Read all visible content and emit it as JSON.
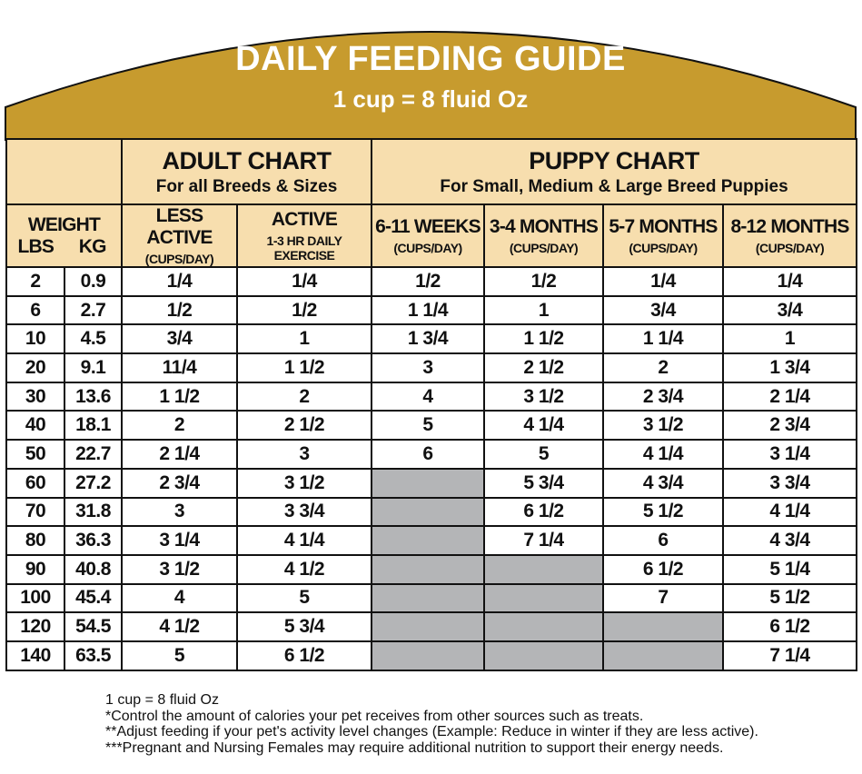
{
  "header": {
    "title": "DAILY FEEDING GUIDE",
    "subtitle": "1 cup = 8 fluid Oz"
  },
  "table": {
    "groups": [
      {
        "title": "ADULT CHART",
        "subtitle": "For all Breeds & Sizes"
      },
      {
        "title": "PUPPY CHART",
        "subtitle": "For Small, Medium & Large Breed Puppies"
      }
    ],
    "weight_label": "WEIGHT",
    "columns": [
      {
        "label": "LBS"
      },
      {
        "label": "KG"
      },
      {
        "label": "LESS ACTIVE",
        "sub": "(CUPS/DAY)"
      },
      {
        "label": "ACTIVE",
        "sub": "1-3 HR DAILY EXERCISE"
      },
      {
        "label": "6-11 WEEKS",
        "sub": "(CUPS/DAY)"
      },
      {
        "label": "3-4 MONTHS",
        "sub": "(CUPS/DAY)"
      },
      {
        "label": "5-7 MONTHS",
        "sub": "(CUPS/DAY)"
      },
      {
        "label": "8-12 MONTHS",
        "sub": "(CUPS/DAY)"
      }
    ],
    "rows": [
      [
        2,
        0.9,
        "1/4",
        "1/4",
        "1/2",
        "1/2",
        "1/4",
        "1/4"
      ],
      [
        6,
        2.7,
        "1/2",
        "1/2",
        "1 1/4",
        "1",
        "3/4",
        "3/4"
      ],
      [
        10,
        4.5,
        "3/4",
        "1",
        "1 3/4",
        "1 1/2",
        "1 1/4",
        "1"
      ],
      [
        20,
        9.1,
        "11/4",
        "1 1/2",
        "3",
        "2 1/2",
        "2",
        "1 3/4"
      ],
      [
        30,
        13.6,
        "1 1/2",
        "2",
        "4",
        "3 1/2",
        "2 3/4",
        "2 1/4"
      ],
      [
        40,
        18.1,
        "2",
        "2 1/2",
        "5",
        "4 1/4",
        "3 1/2",
        "2 3/4"
      ],
      [
        50,
        22.7,
        "2 1/4",
        "3",
        "6",
        "5",
        "4 1/4",
        "3 1/4"
      ],
      [
        60,
        27.2,
        "2 3/4",
        "3 1/2",
        null,
        "5 3/4",
        "4 3/4",
        "3 3/4"
      ],
      [
        70,
        31.8,
        "3",
        "3 3/4",
        null,
        "6 1/2",
        "5 1/2",
        "4 1/4"
      ],
      [
        80,
        36.3,
        "3 1/4",
        "4 1/4",
        null,
        "7 1/4",
        "6",
        "4 3/4"
      ],
      [
        90,
        40.8,
        "3 1/2",
        "4 1/2",
        null,
        null,
        "6 1/2",
        "5 1/4"
      ],
      [
        100,
        45.4,
        "4",
        "5",
        null,
        null,
        "7",
        "5 1/2"
      ],
      [
        120,
        54.5,
        "4 1/2",
        "5 3/4",
        null,
        null,
        null,
        "6 1/2"
      ],
      [
        140,
        63.5,
        "5",
        "6 1/2",
        null,
        null,
        null,
        "7 1/4"
      ]
    ]
  },
  "footnotes": [
    "1 cup = 8 fluid Oz",
    "*Control the amount of calories your pet receives from other sources such as treats.",
    "**Adjust feeding if your pet's activity level changes (Example: Reduce in winter if they are less active).",
    "***Pregnant and Nursing Females may require additional nutrition to support their energy needs."
  ]
}
